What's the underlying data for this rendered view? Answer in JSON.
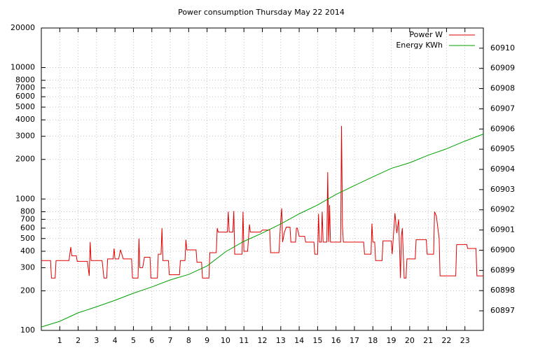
{
  "chart_data": {
    "type": "line",
    "title": "Power consumption Thursday May 22 2014",
    "xlim": [
      0,
      24
    ],
    "xticks": [
      1,
      2,
      3,
      4,
      5,
      6,
      7,
      8,
      9,
      10,
      11,
      12,
      13,
      14,
      15,
      16,
      17,
      18,
      19,
      20,
      21,
      22,
      23
    ],
    "ylim": [
      100,
      20000
    ],
    "yscale": "log",
    "yticks": [
      100,
      200,
      300,
      400,
      500,
      600,
      700,
      800,
      1000,
      2000,
      3000,
      4000,
      5000,
      6000,
      7000,
      8000,
      10000,
      20000
    ],
    "y2lim": [
      60896.03,
      60911.0
    ],
    "y2ticks": [
      60897,
      60898,
      60899,
      60900,
      60901,
      60902,
      60903,
      60904,
      60905,
      60906,
      60907,
      60908,
      60909,
      60910
    ],
    "grid": true,
    "legend": "top-right",
    "series": [
      {
        "name": "Power W",
        "color": "#e00000",
        "x": [
          0,
          0.5,
          0.55,
          0.75,
          0.8,
          1.5,
          1.6,
          1.65,
          1.9,
          1.95,
          2.5,
          2.6,
          2.65,
          2.7,
          3.3,
          3.4,
          3.55,
          3.6,
          3.9,
          3.95,
          4.0,
          4.2,
          4.3,
          4.45,
          4.9,
          4.95,
          5.25,
          5.3,
          5.35,
          5.5,
          5.6,
          5.9,
          5.95,
          6.3,
          6.35,
          6.5,
          6.55,
          6.6,
          6.9,
          6.95,
          7.5,
          7.55,
          7.8,
          7.85,
          7.9,
          8.4,
          8.45,
          8.7,
          8.75,
          9.1,
          9.15,
          9.5,
          9.55,
          9.6,
          10.1,
          10.15,
          10.2,
          10.4,
          10.45,
          10.5,
          10.9,
          10.95,
          11.0,
          11.2,
          11.3,
          11.35,
          11.9,
          12.0,
          12.4,
          12.45,
          12.9,
          13.0,
          13.05,
          13.1,
          13.2,
          13.3,
          13.5,
          13.55,
          13.8,
          13.85,
          13.9,
          14.0,
          14.3,
          14.35,
          14.8,
          14.85,
          15.0,
          15.05,
          15.1,
          15.2,
          15.25,
          15.3,
          15.5,
          15.55,
          15.6,
          15.65,
          15.7,
          16.25,
          16.3,
          16.35,
          16.4,
          17.5,
          17.55,
          17.9,
          17.95,
          18.0,
          18.1,
          18.15,
          18.5,
          18.55,
          19.0,
          19.05,
          19.2,
          19.3,
          19.4,
          19.5,
          19.55,
          19.6,
          19.7,
          19.8,
          19.85,
          20.3,
          20.35,
          20.9,
          20.95,
          21.3,
          21.35,
          21.45,
          21.6,
          21.65,
          22.5,
          22.55,
          23.1,
          23.15,
          23.6,
          23.65,
          24
        ],
        "values": [
          340,
          340,
          250,
          250,
          340,
          340,
          430,
          370,
          370,
          335,
          335,
          260,
          470,
          340,
          340,
          250,
          250,
          350,
          350,
          420,
          350,
          350,
          410,
          350,
          350,
          250,
          250,
          500,
          300,
          300,
          360,
          360,
          250,
          250,
          380,
          380,
          600,
          340,
          340,
          265,
          265,
          340,
          340,
          490,
          410,
          410,
          330,
          330,
          250,
          250,
          390,
          390,
          600,
          560,
          560,
          800,
          560,
          560,
          810,
          380,
          380,
          800,
          400,
          400,
          640,
          560,
          560,
          580,
          580,
          390,
          390,
          700,
          850,
          470,
          560,
          610,
          610,
          470,
          470,
          600,
          600,
          520,
          520,
          470,
          470,
          380,
          380,
          770,
          470,
          470,
          800,
          470,
          470,
          1600,
          470,
          900,
          470,
          470,
          3600,
          620,
          470,
          470,
          380,
          380,
          650,
          470,
          470,
          340,
          340,
          480,
          480,
          380,
          780,
          550,
          700,
          250,
          520,
          600,
          250,
          250,
          350,
          350,
          490,
          490,
          380,
          380,
          800,
          740,
          500,
          260,
          260,
          450,
          450,
          420,
          420,
          260,
          260
        ]
      },
      {
        "name": "Energy KWh",
        "color": "#00a000",
        "axis": "y2",
        "x": [
          0,
          1,
          2,
          3,
          4,
          5,
          6,
          7,
          8,
          9,
          10,
          11,
          12,
          13,
          14,
          15,
          16,
          17,
          18,
          19,
          20,
          21,
          22,
          23,
          24
        ],
        "values": [
          60896.2,
          60896.48,
          60896.9,
          60897.2,
          60897.52,
          60897.87,
          60898.18,
          60898.53,
          60898.8,
          60899.22,
          60899.92,
          60900.44,
          60900.85,
          60901.3,
          60901.8,
          60902.24,
          60902.76,
          60903.2,
          60903.63,
          60904.05,
          60904.33,
          60904.7,
          60905.02,
          60905.4,
          60905.75
        ]
      }
    ]
  }
}
